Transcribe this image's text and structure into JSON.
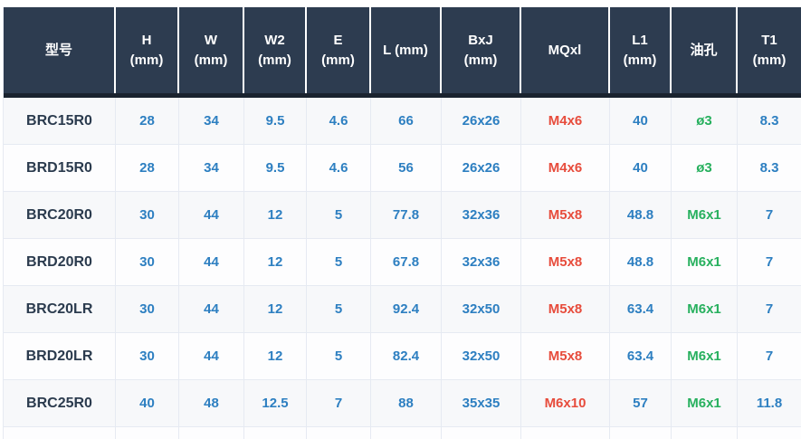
{
  "colors": {
    "header_bg": "#2d3c50",
    "header_border": "#1a232f",
    "grid_line": "#e6eaf2",
    "row_odd_bg": "#f7f8fa",
    "row_even_bg": "#fdfdfe",
    "value_blue": "#2d7fc1",
    "value_red": "#e74c3c",
    "value_green": "#27b05e",
    "model_text": "#2b3b4e"
  },
  "table": {
    "columns": [
      {
        "line1": "型号"
      },
      {
        "line1": "H",
        "line2": "(mm)"
      },
      {
        "line1": "W",
        "line2": "(mm)"
      },
      {
        "line1": "W2",
        "line2": "(mm)"
      },
      {
        "line1": "E",
        "line2": "(mm)"
      },
      {
        "line1": "L (mm)"
      },
      {
        "line1": "BxJ",
        "line2": "(mm)"
      },
      {
        "line1": "MQxl"
      },
      {
        "line1": "L1",
        "line2": "(mm)"
      },
      {
        "line1": "油孔"
      },
      {
        "line1": "T1",
        "line2": "(mm)"
      }
    ],
    "rows": [
      {
        "model": "BRC15R0",
        "values": [
          "28",
          "34",
          "9.5",
          "4.6",
          "66",
          "26x26",
          "M4x6",
          "40",
          "ø3",
          "8.3"
        ]
      },
      {
        "model": "BRD15R0",
        "values": [
          "28",
          "34",
          "9.5",
          "4.6",
          "56",
          "26x26",
          "M4x6",
          "40",
          "ø3",
          "8.3"
        ]
      },
      {
        "model": "BRC20R0",
        "values": [
          "30",
          "44",
          "12",
          "5",
          "77.8",
          "32x36",
          "M5x8",
          "48.8",
          "M6x1",
          "7"
        ]
      },
      {
        "model": "BRD20R0",
        "values": [
          "30",
          "44",
          "12",
          "5",
          "67.8",
          "32x36",
          "M5x8",
          "48.8",
          "M6x1",
          "7"
        ]
      },
      {
        "model": "BRC20LR",
        "values": [
          "30",
          "44",
          "12",
          "5",
          "92.4",
          "32x50",
          "M5x8",
          "63.4",
          "M6x1",
          "7"
        ]
      },
      {
        "model": "BRD20LR",
        "values": [
          "30",
          "44",
          "12",
          "5",
          "82.4",
          "32x50",
          "M5x8",
          "63.4",
          "M6x1",
          "7"
        ]
      },
      {
        "model": "BRC25R0",
        "values": [
          "40",
          "48",
          "12.5",
          "7",
          "88",
          "35x35",
          "M6x10",
          "57",
          "M6x1",
          "11.8"
        ]
      }
    ]
  }
}
